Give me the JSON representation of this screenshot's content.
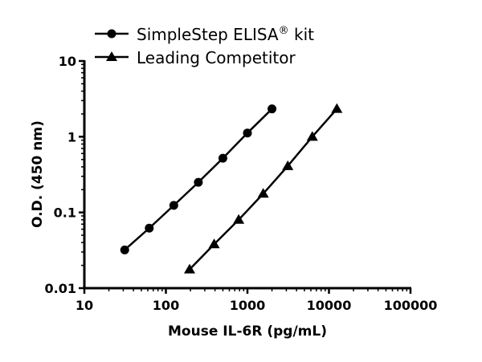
{
  "chart_data": {
    "type": "line",
    "title": "",
    "xlabel": "Mouse IL-6R (pg/mL)",
    "ylabel": "O.D. (450 nm)",
    "xscale": "log",
    "yscale": "log",
    "xlim": [
      10,
      100000
    ],
    "ylim": [
      0.01,
      10
    ],
    "xticks": [
      "10",
      "100",
      "1000",
      "10000",
      "100000"
    ],
    "yticks": [
      "0.01",
      "0.1",
      "1",
      "10"
    ],
    "grid": false,
    "legend_position": "top",
    "series": [
      {
        "name": "SimpleStep ELISA",
        "name_sup": "®",
        "name_suffix": " kit",
        "marker": "circle",
        "color": "#000000",
        "x": [
          31.25,
          62.5,
          125,
          250,
          500,
          1000,
          2000
        ],
        "y": [
          0.032,
          0.062,
          0.124,
          0.25,
          0.52,
          1.12,
          2.33
        ]
      },
      {
        "name": "Leading Competitor",
        "marker": "triangle",
        "color": "#000000",
        "x": [
          195.3,
          390.6,
          781.25,
          1562.5,
          3125,
          6250,
          12500
        ],
        "y": [
          0.0177,
          0.038,
          0.08,
          0.177,
          0.41,
          1.0,
          2.33
        ]
      }
    ]
  }
}
